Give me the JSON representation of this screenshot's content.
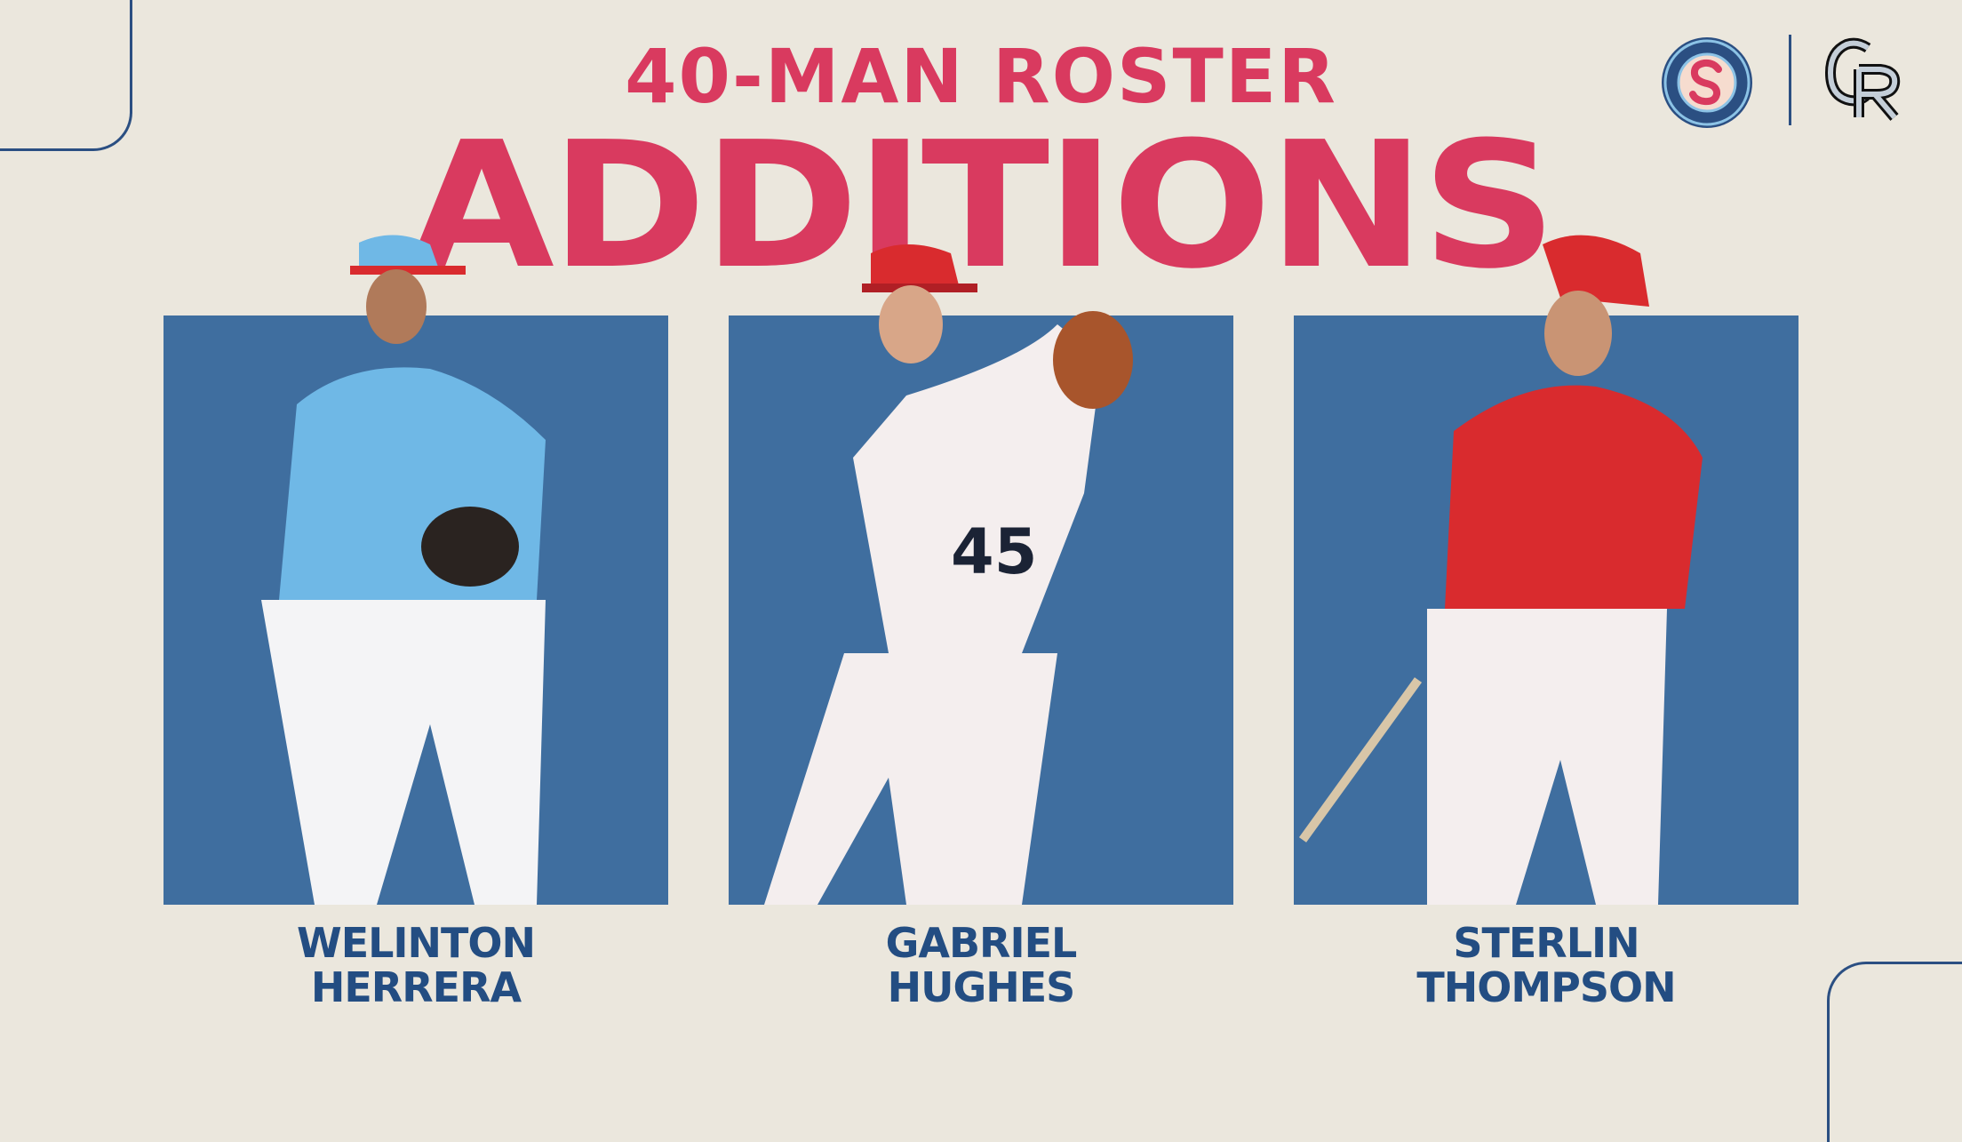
{
  "header": {
    "line1": "40-MAN ROSTER",
    "line2": "ADDITIONS"
  },
  "logos": {
    "spokane": "SPOKANE INDIANS",
    "rockies": "CR"
  },
  "players": [
    {
      "first": "WELINTON",
      "last": "HERRERA",
      "jersey_color": "#6fb8e6"
    },
    {
      "first": "GABRIEL",
      "last": "HUGHES",
      "jersey_color": "#f4eeee",
      "number": "45"
    },
    {
      "first": "STERLIN",
      "last": "THOMPSON",
      "jersey_color": "#d92b2e"
    }
  ],
  "colors": {
    "accent": "#d93a5f",
    "navy": "#234d82",
    "background": "#ebe7dd",
    "panel": "#3f6e9f"
  }
}
